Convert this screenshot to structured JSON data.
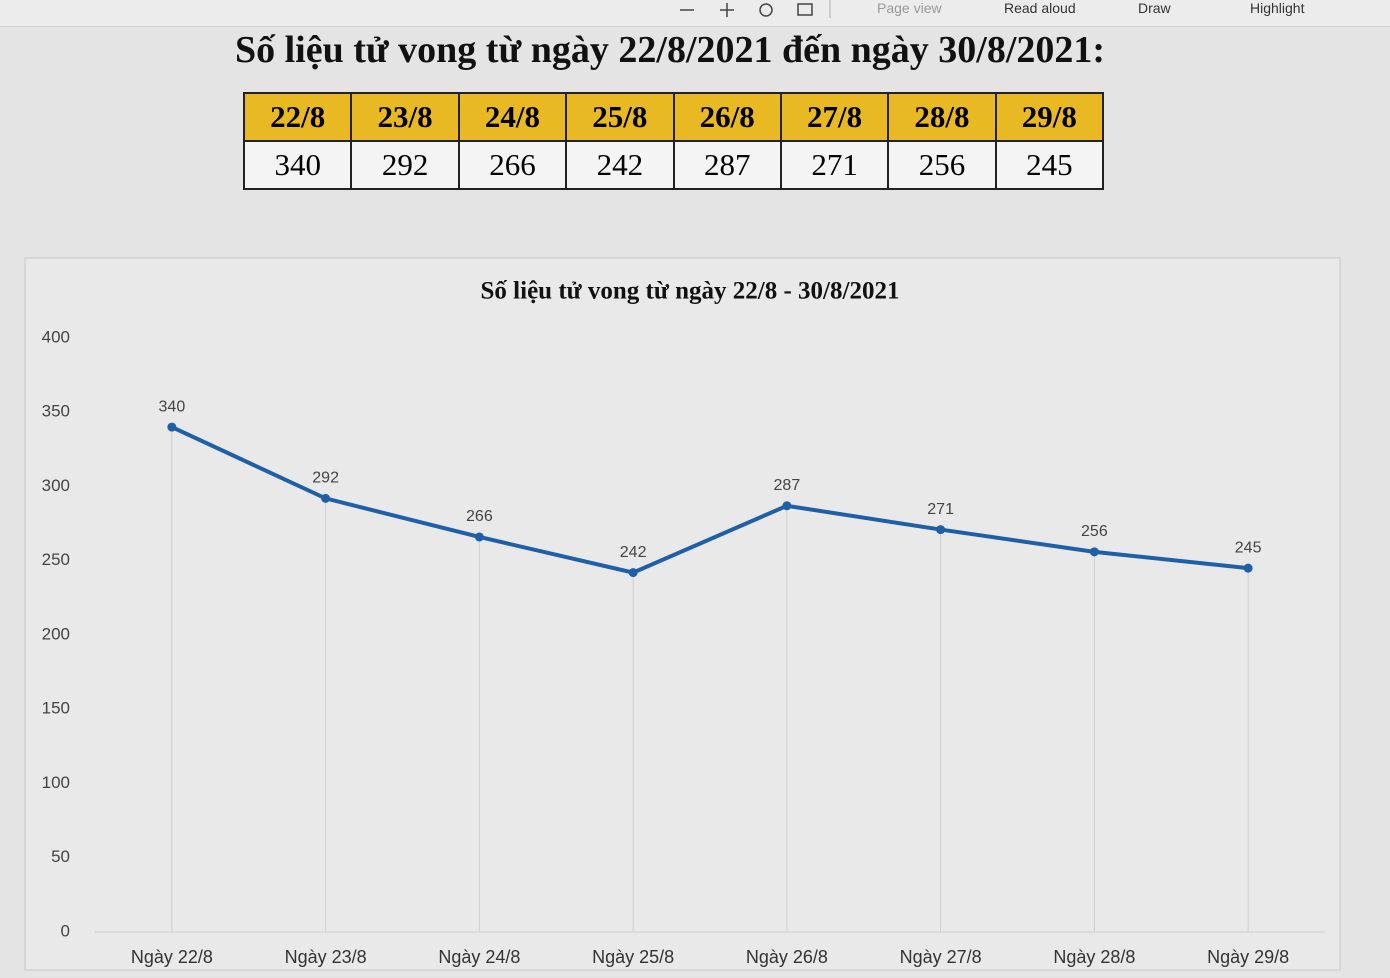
{
  "toolbar": {
    "items": [
      "Page view",
      "Read aloud",
      "Draw",
      "Highlight"
    ]
  },
  "header": {
    "title": "Số liệu tử vong từ ngày 22/8/2021 đến ngày 30/8/2021:"
  },
  "table": {
    "rows": [
      [
        "22/8",
        "23/8",
        "24/8",
        "25/8",
        "26/8",
        "27/8",
        "28/8",
        "29/8"
      ],
      [
        340,
        292,
        266,
        242,
        287,
        271,
        256,
        245
      ]
    ]
  },
  "chart_data": {
    "type": "line",
    "title": "Số liệu tử vong từ ngày 22/8 - 30/8/2021",
    "categories": [
      "Ngày 22/8",
      "Ngày 23/8",
      "Ngày 24/8",
      "Ngày 25/8",
      "Ngày 26/8",
      "Ngày 27/8",
      "Ngày 28/8",
      "Ngày 29/8"
    ],
    "values": [
      340,
      292,
      266,
      242,
      287,
      271,
      256,
      245
    ],
    "color": "#1f5fa8",
    "ylim": [
      0,
      400
    ],
    "yticks": [
      0,
      50,
      100,
      150,
      200,
      250,
      300,
      350,
      400
    ],
    "grid": "vertical"
  }
}
